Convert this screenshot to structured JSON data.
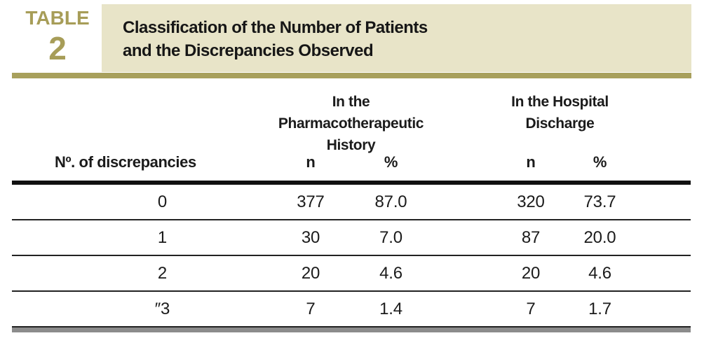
{
  "badge": {
    "word": "TABLE",
    "number": "2"
  },
  "title": {
    "line1": "Classification of the Number of Patients",
    "line2": "and the Discrepancies Observed"
  },
  "groups": {
    "pharm": {
      "line1": "In the Pharmacotherapeutic",
      "line2": "History"
    },
    "hosp": {
      "line1": "In the Hospital",
      "line2": "Discharge"
    }
  },
  "headers": {
    "row_label": "Nº. of discrepancies",
    "n": "n",
    "pct": "%"
  },
  "rows": [
    {
      "label": "0",
      "pharm_n": "377",
      "pharm_pct": "87.0",
      "hosp_n": "320",
      "hosp_pct": "73.7"
    },
    {
      "label": "1",
      "pharm_n": "30",
      "pharm_pct": "7.0",
      "hosp_n": "87",
      "hosp_pct": "20.0"
    },
    {
      "label": "2",
      "pharm_n": "20",
      "pharm_pct": "4.6",
      "hosp_n": "20",
      "hosp_pct": "4.6"
    },
    {
      "label": "″3",
      "pharm_n": "7",
      "pharm_pct": "1.4",
      "hosp_n": "7",
      "hosp_pct": "1.7"
    }
  ],
  "colors": {
    "olive_text": "#a79d58",
    "olive_bar": "#a8a05c",
    "banner_beige": "#e8e4c8",
    "text": "#1b1b1b",
    "rule_thick": "#111111",
    "rule_thin": "#222222",
    "bottom_bar_gray": "#8c8c8c"
  },
  "chart_data": {
    "type": "table",
    "title": "Classification of the Number of Patients and the Discrepancies Observed",
    "column_groups": [
      "In the Pharmacotherapeutic History",
      "In the Hospital Discharge"
    ],
    "columns": [
      "Nº. of discrepancies",
      "Pharmacotherapeutic History n",
      "Pharmacotherapeutic History %",
      "Hospital Discharge n",
      "Hospital Discharge %"
    ],
    "rows": [
      [
        "0",
        377,
        87.0,
        320,
        73.7
      ],
      [
        "1",
        30,
        7.0,
        87,
        20.0
      ],
      [
        "2",
        20,
        4.6,
        20,
        4.6
      ],
      [
        "″3",
        7,
        1.4,
        7,
        1.7
      ]
    ]
  }
}
